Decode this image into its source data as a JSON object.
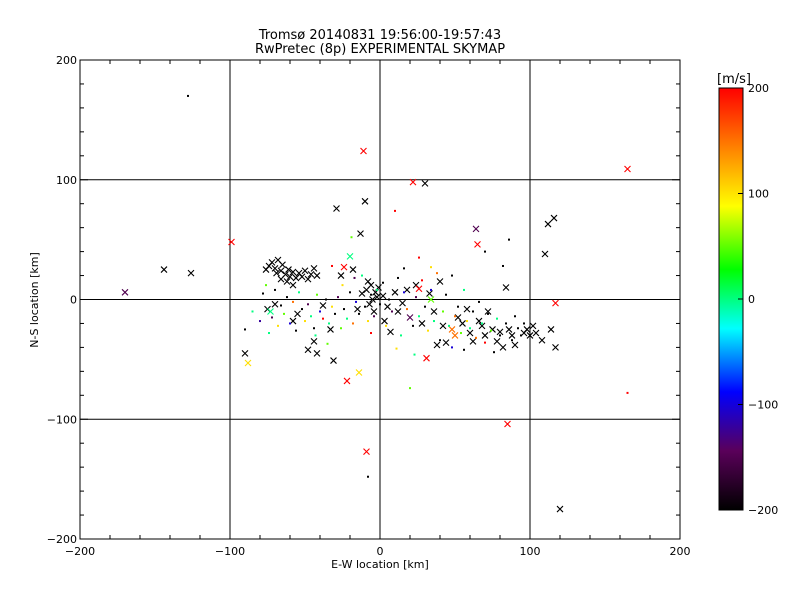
{
  "chart_data": {
    "type": "scatter",
    "title": "Tromsø 20140831 19:56:00-19:57:43",
    "subtitle": "RwPretec (8p) EXPERIMENTAL SKYMAP",
    "xlabel": "E-W location [km]",
    "ylabel": "N-S location [km]",
    "xlim": [
      -200,
      200
    ],
    "ylim": [
      -200,
      200
    ],
    "x_ticks": [
      -200,
      -100,
      0,
      100,
      200
    ],
    "y_ticks": [
      -200,
      -100,
      0,
      100,
      200
    ],
    "gridlines_x": [
      -100,
      0,
      100
    ],
    "gridlines_y": [
      -100,
      0,
      100
    ],
    "colorbar": {
      "unit": "[m/s]",
      "range": [
        -200,
        200
      ],
      "ticks": [
        200,
        100,
        0,
        -100,
        -200
      ],
      "colors": [
        "#000000",
        "#5a005a",
        "#0000ff",
        "#00ffff",
        "#00ff00",
        "#ffff00",
        "#ff8000",
        "#ff0000"
      ],
      "placement": "right"
    },
    "series": [
      {
        "marker": "x",
        "points": [
          [
            -170,
            6,
            -150
          ],
          [
            -144,
            25,
            -200
          ],
          [
            -126,
            22,
            -200
          ],
          [
            -99,
            48,
            200
          ],
          [
            -90,
            -45,
            -200
          ],
          [
            -88,
            -53,
            100
          ],
          [
            -76,
            25,
            -200
          ],
          [
            -74,
            28,
            -200
          ],
          [
            -72,
            31,
            -200
          ],
          [
            -70,
            26,
            -200
          ],
          [
            -69,
            22,
            -200
          ],
          [
            -68,
            33,
            -200
          ],
          [
            -66,
            24,
            -200
          ],
          [
            -65,
            29,
            -200
          ],
          [
            -63,
            21,
            -200
          ],
          [
            -61,
            25,
            -200
          ],
          [
            -60,
            19,
            -200
          ],
          [
            -58,
            23,
            -200
          ],
          [
            -56,
            18,
            -200
          ],
          [
            -54,
            22,
            -200
          ],
          [
            -52,
            19,
            -200
          ],
          [
            -50,
            24,
            -200
          ],
          [
            -48,
            17,
            -200
          ],
          [
            -46,
            21,
            -200
          ],
          [
            -44,
            26,
            -200
          ],
          [
            -42,
            20,
            -200
          ],
          [
            -62,
            15,
            -200
          ],
          [
            -58,
            12,
            -200
          ],
          [
            -66,
            17,
            -200
          ],
          [
            -75,
            -8,
            -200
          ],
          [
            -73,
            -10,
            0
          ],
          [
            -70,
            -4,
            -200
          ],
          [
            -58,
            -18,
            -200
          ],
          [
            -55,
            -12,
            -200
          ],
          [
            -48,
            -42,
            -200
          ],
          [
            -44,
            -35,
            -200
          ],
          [
            -42,
            -45,
            -200
          ],
          [
            -38,
            -5,
            -200
          ],
          [
            -33,
            -25,
            -200
          ],
          [
            -31,
            -51,
            -200
          ],
          [
            -29,
            76,
            -200
          ],
          [
            -26,
            20,
            -200
          ],
          [
            -24,
            27,
            200
          ],
          [
            -22,
            -68,
            200
          ],
          [
            -20,
            36,
            0
          ],
          [
            -18,
            25,
            -200
          ],
          [
            -15,
            -8,
            -200
          ],
          [
            -14,
            -61,
            100
          ],
          [
            -13,
            55,
            -200
          ],
          [
            -12,
            5,
            -200
          ],
          [
            -11,
            124,
            200
          ],
          [
            -10,
            82,
            -200
          ],
          [
            -9,
            8,
            -200
          ],
          [
            -8,
            15,
            -200
          ],
          [
            -7,
            -4,
            -200
          ],
          [
            -6,
            12,
            -200
          ],
          [
            -5,
            0,
            -200
          ],
          [
            -4,
            -10,
            -200
          ],
          [
            -3,
            6,
            -200
          ],
          [
            -2,
            2,
            -200
          ],
          [
            -1,
            10,
            -200
          ],
          [
            -9,
            -127,
            200
          ],
          [
            2,
            3,
            -200
          ],
          [
            3,
            -18,
            -200
          ],
          [
            5,
            -6,
            -200
          ],
          [
            7,
            -27,
            -200
          ],
          [
            10,
            6,
            -200
          ],
          [
            12,
            -10,
            -200
          ],
          [
            15,
            -3,
            -200
          ],
          [
            18,
            8,
            -200
          ],
          [
            20,
            -15,
            -150
          ],
          [
            22,
            98,
            200
          ],
          [
            24,
            12,
            -200
          ],
          [
            26,
            9,
            200
          ],
          [
            28,
            -20,
            -200
          ],
          [
            30,
            97,
            -200
          ],
          [
            31,
            -49,
            200
          ],
          [
            33,
            5,
            -200
          ],
          [
            34,
            0,
            50
          ],
          [
            36,
            -10,
            -200
          ],
          [
            38,
            -38,
            -200
          ],
          [
            40,
            15,
            -200
          ],
          [
            42,
            -22,
            -200
          ],
          [
            44,
            -36,
            -200
          ],
          [
            48,
            -25,
            150
          ],
          [
            50,
            -30,
            150
          ],
          [
            52,
            -15,
            -200
          ],
          [
            55,
            -20,
            -200
          ],
          [
            58,
            -8,
            -200
          ],
          [
            60,
            -28,
            -200
          ],
          [
            62,
            -35,
            -200
          ],
          [
            64,
            59,
            -150
          ],
          [
            65,
            46,
            200
          ],
          [
            66,
            -18,
            -200
          ],
          [
            68,
            -22,
            -200
          ],
          [
            70,
            -30,
            -200
          ],
          [
            72,
            -10,
            -200
          ],
          [
            75,
            -25,
            -200
          ],
          [
            78,
            -35,
            -200
          ],
          [
            80,
            -27,
            -200
          ],
          [
            82,
            -40,
            -200
          ],
          [
            84,
            10,
            -200
          ],
          [
            85,
            -104,
            200
          ],
          [
            86,
            -25,
            -200
          ],
          [
            88,
            -30,
            -200
          ],
          [
            90,
            -38,
            -200
          ],
          [
            96,
            -28,
            -200
          ],
          [
            98,
            -25,
            -200
          ],
          [
            100,
            -30,
            -200
          ],
          [
            102,
            -22,
            -200
          ],
          [
            104,
            -28,
            -200
          ],
          [
            108,
            -34,
            -200
          ],
          [
            110,
            38,
            -200
          ],
          [
            112,
            63,
            -200
          ],
          [
            114,
            -25,
            -200
          ],
          [
            116,
            68,
            -200
          ],
          [
            117,
            -40,
            -200
          ],
          [
            117,
            -3,
            200
          ],
          [
            120,
            -175,
            -200
          ],
          [
            165,
            109,
            200
          ]
        ]
      },
      {
        "marker": "dot",
        "points": [
          [
            -128,
            170,
            -200
          ],
          [
            -90,
            -25,
            -200
          ],
          [
            -85,
            -10,
            0
          ],
          [
            -80,
            -18,
            -120
          ],
          [
            -78,
            5,
            -200
          ],
          [
            -76,
            12,
            50
          ],
          [
            -74,
            -28,
            0
          ],
          [
            -72,
            -15,
            -150
          ],
          [
            -70,
            8,
            -200
          ],
          [
            -68,
            -22,
            100
          ],
          [
            -66,
            -5,
            -200
          ],
          [
            -64,
            -12,
            50
          ],
          [
            -62,
            2,
            -200
          ],
          [
            -60,
            -20,
            -100
          ],
          [
            -58,
            -2,
            150
          ],
          [
            -56,
            -26,
            -200
          ],
          [
            -54,
            6,
            0
          ],
          [
            -52,
            -8,
            -200
          ],
          [
            -50,
            -18,
            100
          ],
          [
            -48,
            -4,
            -150
          ],
          [
            -46,
            -14,
            0
          ],
          [
            -44,
            -24,
            -200
          ],
          [
            -42,
            4,
            50
          ],
          [
            -40,
            -10,
            -100
          ],
          [
            -38,
            -16,
            200
          ],
          [
            -36,
            0,
            -200
          ],
          [
            -34,
            -20,
            0
          ],
          [
            -32,
            -6,
            100
          ],
          [
            -30,
            -12,
            -200
          ],
          [
            -28,
            2,
            -150
          ],
          [
            -26,
            -24,
            50
          ],
          [
            -24,
            -8,
            -200
          ],
          [
            -22,
            -16,
            0
          ],
          [
            -20,
            6,
            -200
          ],
          [
            -18,
            -20,
            150
          ],
          [
            -16,
            -2,
            -100
          ],
          [
            -14,
            -12,
            -200
          ],
          [
            -12,
            20,
            0
          ],
          [
            -10,
            -6,
            -200
          ],
          [
            -8,
            -18,
            100
          ],
          [
            -6,
            4,
            -200
          ],
          [
            -4,
            -14,
            -150
          ],
          [
            -2,
            8,
            0
          ],
          [
            0,
            -4,
            -200
          ],
          [
            2,
            14,
            -200
          ],
          [
            4,
            -22,
            100
          ],
          [
            6,
            0,
            -200
          ],
          [
            8,
            -10,
            -150
          ],
          [
            10,
            74,
            200
          ],
          [
            12,
            18,
            -200
          ],
          [
            14,
            -30,
            0
          ],
          [
            16,
            6,
            -100
          ],
          [
            18,
            -8,
            150
          ],
          [
            20,
            -74,
            50
          ],
          [
            22,
            -22,
            -200
          ],
          [
            24,
            2,
            -150
          ],
          [
            26,
            -14,
            0
          ],
          [
            28,
            16,
            200
          ],
          [
            30,
            -6,
            -200
          ],
          [
            32,
            -26,
            100
          ],
          [
            34,
            8,
            -100
          ],
          [
            36,
            -18,
            0
          ],
          [
            38,
            22,
            150
          ],
          [
            40,
            -34,
            -200
          ],
          [
            42,
            -10,
            50
          ],
          [
            44,
            4,
            -200
          ],
          [
            46,
            -22,
            0
          ],
          [
            48,
            -40,
            -100
          ],
          [
            50,
            -14,
            150
          ],
          [
            52,
            -6,
            -200
          ],
          [
            54,
            -28,
            50
          ],
          [
            56,
            -42,
            -200
          ],
          [
            58,
            -18,
            100
          ],
          [
            60,
            -24,
            0
          ],
          [
            62,
            -10,
            -200
          ],
          [
            64,
            -32,
            150
          ],
          [
            66,
            -2,
            -200
          ],
          [
            68,
            -20,
            0
          ],
          [
            70,
            -36,
            200
          ],
          [
            72,
            -12,
            -200
          ],
          [
            74,
            -26,
            50
          ],
          [
            76,
            -44,
            -200
          ],
          [
            78,
            -16,
            0
          ],
          [
            80,
            -30,
            -200
          ],
          [
            82,
            28,
            -200
          ],
          [
            84,
            -20,
            -200
          ],
          [
            86,
            50,
            -200
          ],
          [
            88,
            -34,
            -200
          ],
          [
            90,
            -14,
            -200
          ],
          [
            92,
            -24,
            -200
          ],
          [
            94,
            -30,
            -200
          ],
          [
            96,
            -20,
            -200
          ],
          [
            -32,
            28,
            200
          ],
          [
            -19,
            52,
            50
          ],
          [
            -8,
            -148,
            -200
          ],
          [
            26,
            35,
            200
          ],
          [
            34,
            27,
            100
          ],
          [
            48,
            20,
            -200
          ],
          [
            56,
            8,
            0
          ],
          [
            70,
            40,
            -200
          ],
          [
            -25,
            12,
            100
          ],
          [
            -17,
            18,
            -150
          ],
          [
            16,
            26,
            -200
          ],
          [
            165,
            -78,
            200
          ],
          [
            -43,
            -30,
            0
          ],
          [
            -35,
            -37,
            50
          ],
          [
            11,
            -41,
            100
          ],
          [
            -6,
            -28,
            200
          ],
          [
            23,
            -46,
            0
          ]
        ]
      }
    ]
  }
}
